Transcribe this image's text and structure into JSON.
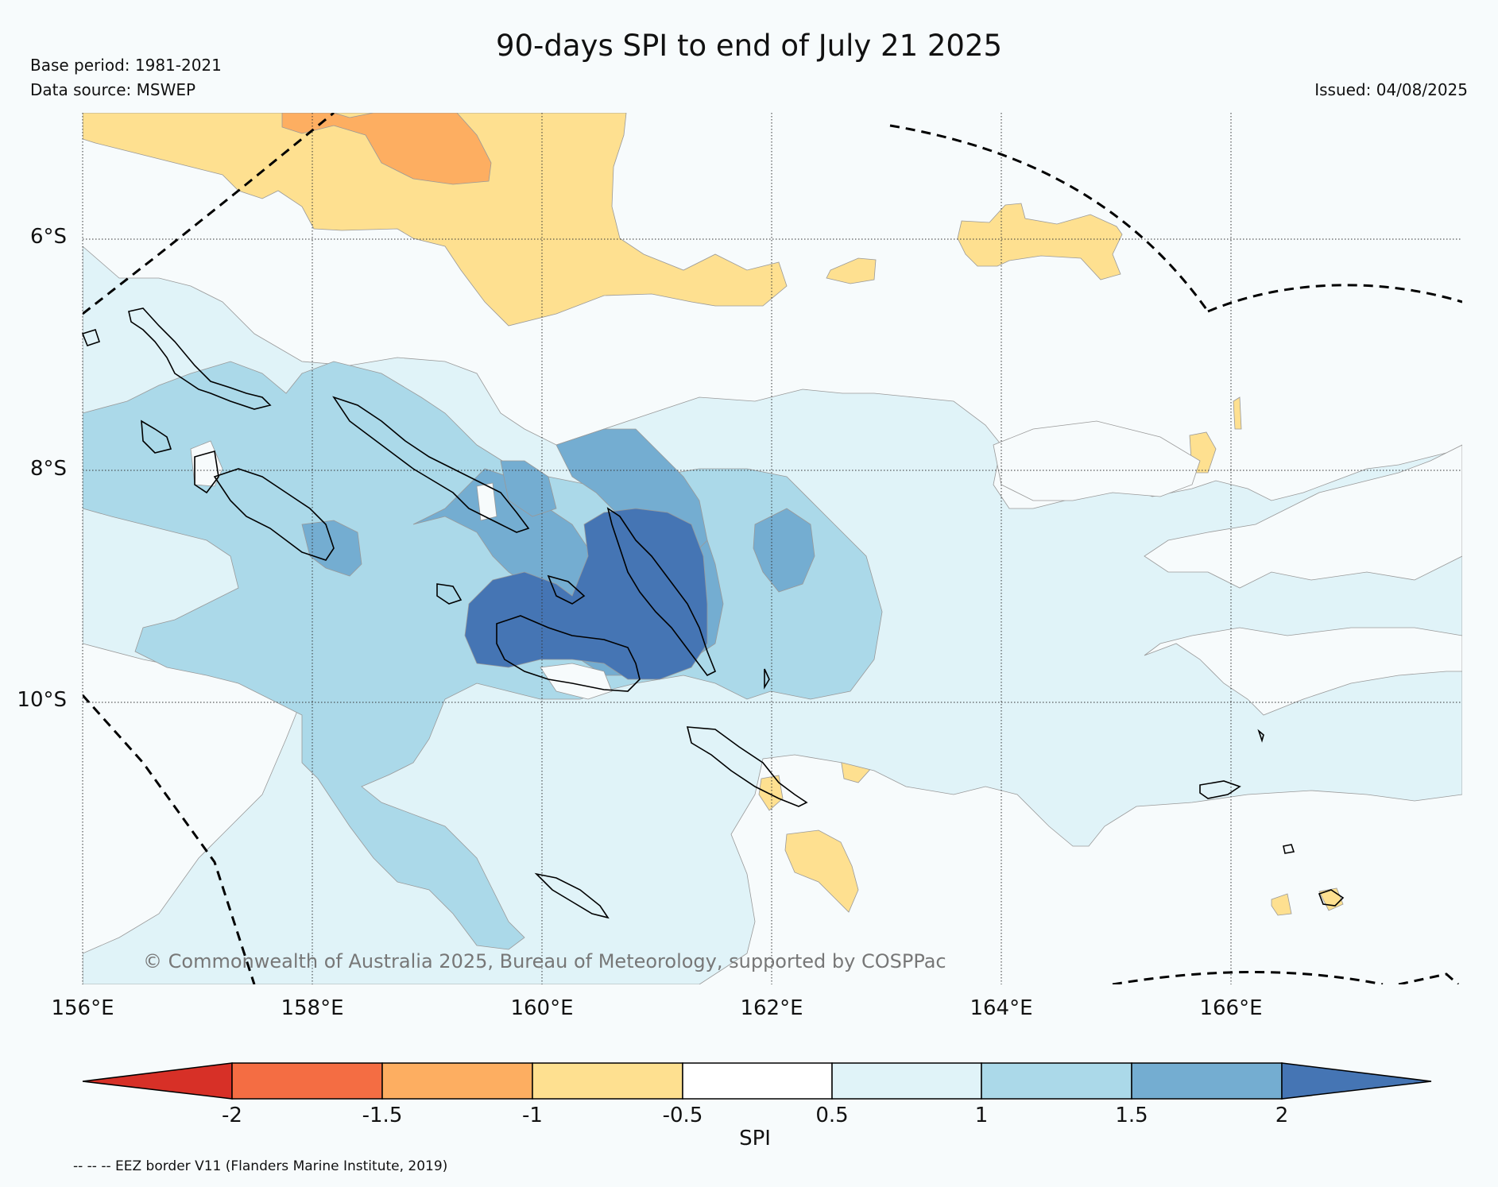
{
  "header": {
    "title": "90-days SPI to end of July 21 2025",
    "base_period": "Base period: 1981-2021",
    "data_source": "Data source: MSWEP",
    "issued": "Issued: 04/08/2025"
  },
  "map": {
    "lat_labels": [
      "6°S",
      "8°S",
      "10°S"
    ],
    "lon_labels": [
      "156°E",
      "158°E",
      "160°E",
      "162°E",
      "164°E",
      "166°E"
    ],
    "copyright": "© Commonwealth of Australia 2025, Bureau of Meteorology, supported by COSPPac"
  },
  "colorbar": {
    "label": "SPI",
    "ticks": [
      "-2",
      "-1.5",
      "-1",
      "-0.5",
      "0.5",
      "1",
      "1.5",
      "2"
    ],
    "colors": [
      "#d73027",
      "#f46d43",
      "#fdae61",
      "#fee090",
      "#ffffff",
      "#e0f3f8",
      "#abd9e9",
      "#74add1",
      "#4575b4"
    ]
  },
  "legend": {
    "eez_note": "-- -- -- EEZ border V11 (Flanders Marine Institute, 2019)"
  }
}
